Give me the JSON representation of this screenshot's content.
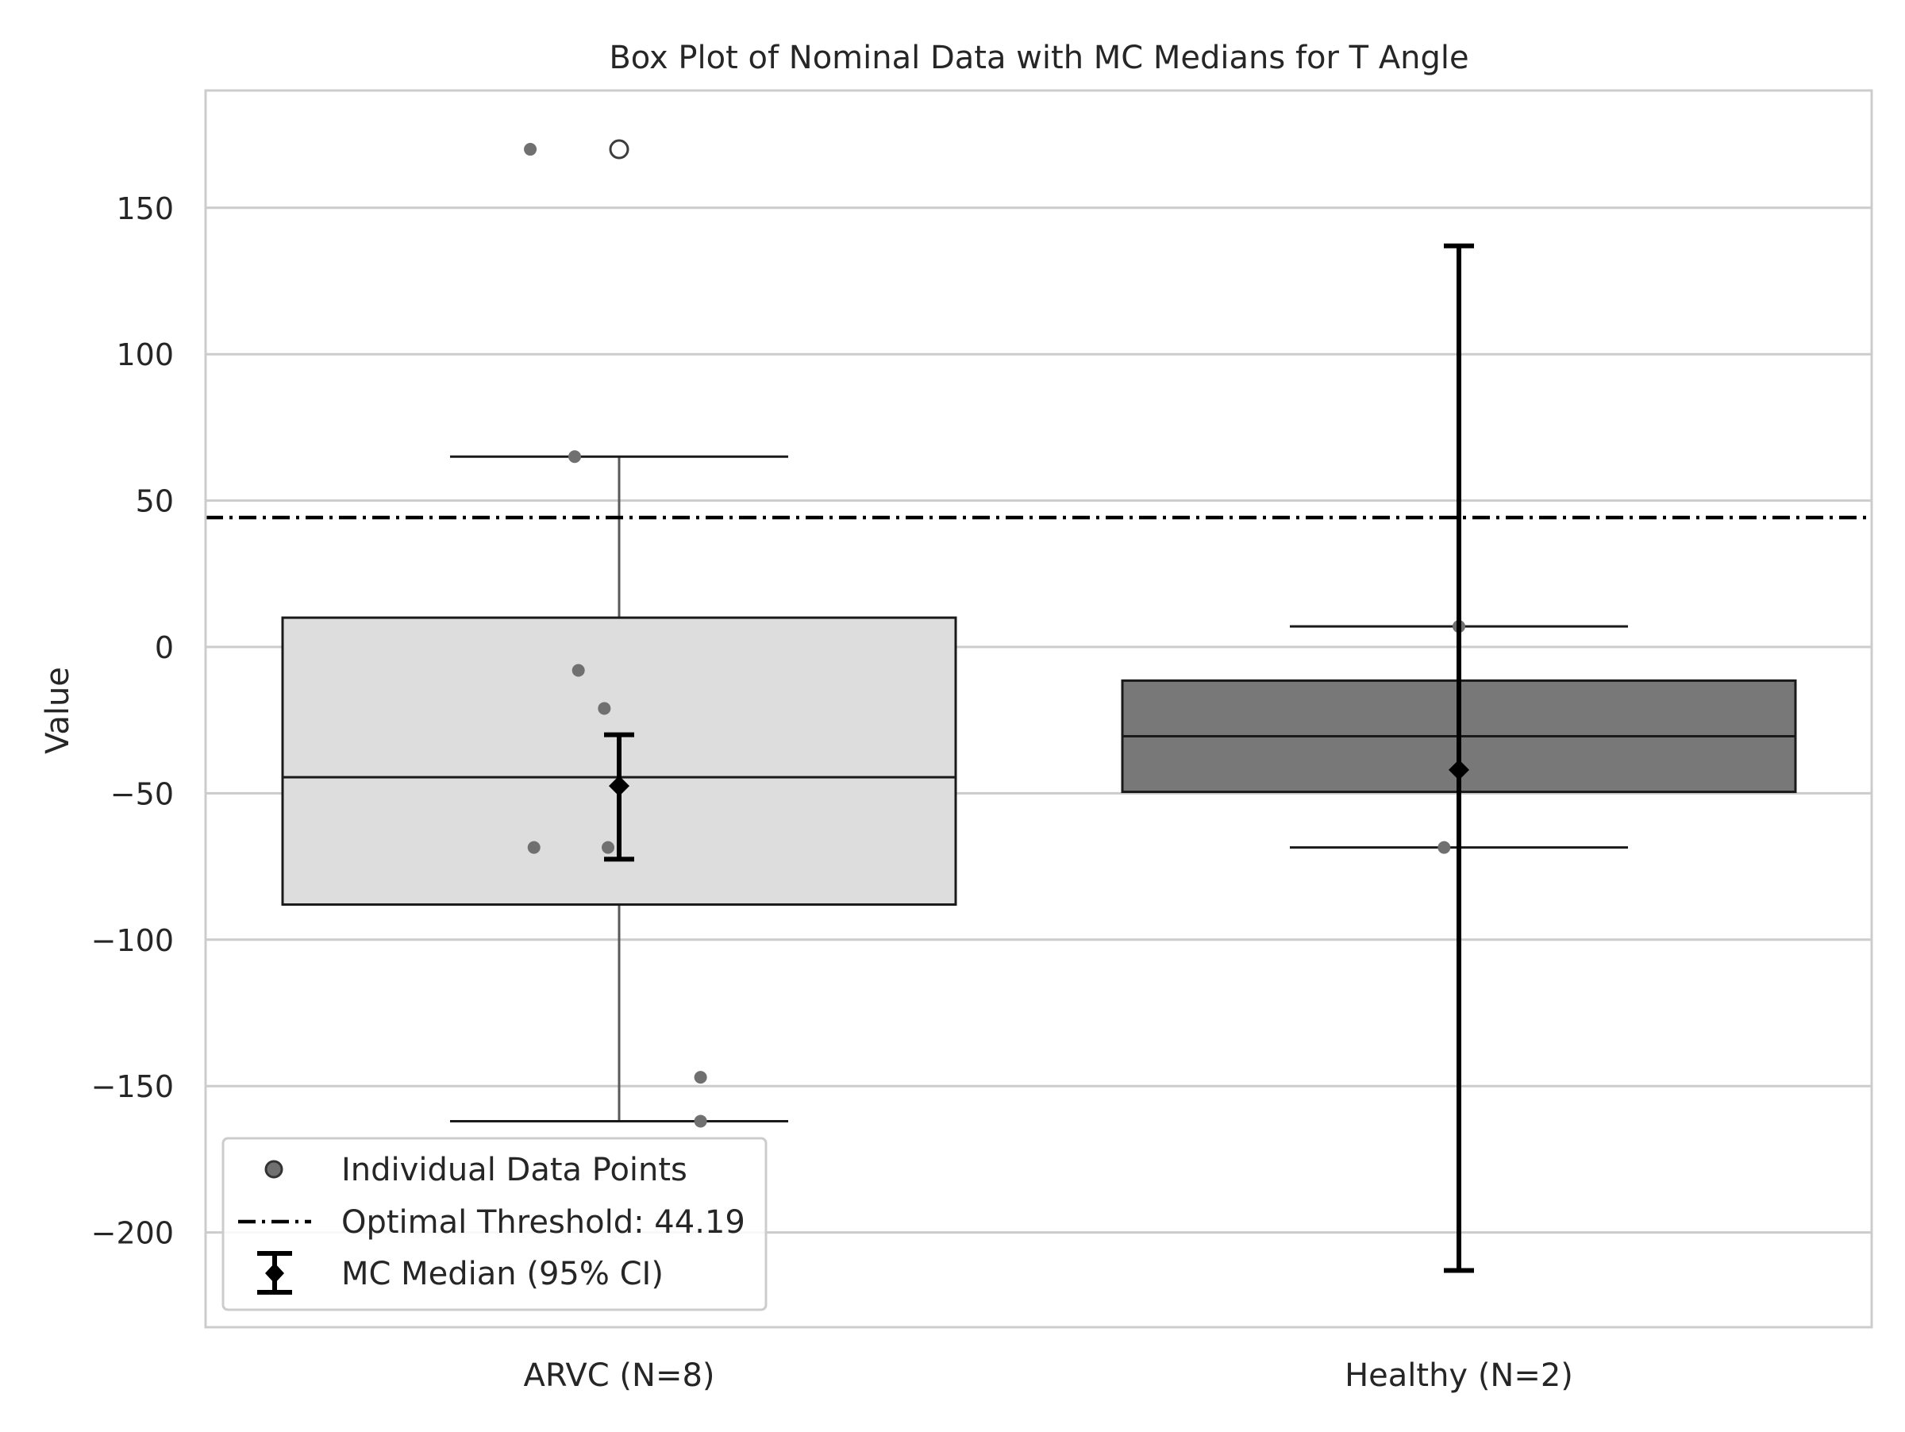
{
  "chart_data": {
    "type": "box",
    "title": "Box Plot of Nominal Data with MC Medians for T Angle",
    "xlabel": "",
    "ylabel": "Value",
    "ylim": [
      -233,
      190
    ],
    "yticks": [
      150,
      100,
      50,
      0,
      -50,
      -100,
      -150,
      -200
    ],
    "ytick_labels": [
      "150",
      "100",
      "50",
      "0",
      "−50",
      "−100",
      "−150",
      "−200"
    ],
    "grid": "horizontal",
    "legend_position": "lower-left",
    "categories": [
      "ARVC (N=8)",
      "Healthy (N=2)"
    ],
    "boxes": [
      {
        "category": "ARVC (N=8)",
        "q1": -88,
        "median": -44.5,
        "q3": 10,
        "whisker_low": -162,
        "whisker_high": 65,
        "outliers": [
          170
        ],
        "fill": "#dddddd"
      },
      {
        "category": "Healthy (N=2)",
        "q1": -49.5,
        "median": -30.5,
        "q3": -11.5,
        "whisker_low": -68.5,
        "whisker_high": 7,
        "outliers": [],
        "fill": "#787878"
      }
    ],
    "points": [
      {
        "category": "ARVC (N=8)",
        "jitter": -0.24,
        "value": 170
      },
      {
        "category": "ARVC (N=8)",
        "jitter": -0.12,
        "value": 65
      },
      {
        "category": "ARVC (N=8)",
        "jitter": -0.11,
        "value": -8
      },
      {
        "category": "ARVC (N=8)",
        "jitter": -0.04,
        "value": -21
      },
      {
        "category": "ARVC (N=8)",
        "jitter": -0.23,
        "value": -68.5
      },
      {
        "category": "ARVC (N=8)",
        "jitter": -0.03,
        "value": -68.5
      },
      {
        "category": "ARVC (N=8)",
        "jitter": 0.22,
        "value": -147
      },
      {
        "category": "ARVC (N=8)",
        "jitter": 0.22,
        "value": -162
      },
      {
        "category": "Healthy (N=2)",
        "jitter": 0.0,
        "value": 7
      },
      {
        "category": "Healthy (N=2)",
        "jitter": -0.04,
        "value": -68.5
      }
    ],
    "mc_medians": [
      {
        "category": "ARVC (N=8)",
        "median": -47.5,
        "ci_low": -72.5,
        "ci_high": -30
      },
      {
        "category": "Healthy (N=2)",
        "median": -42,
        "ci_low": -213,
        "ci_high": 137
      }
    ],
    "threshold": {
      "value": 44.19,
      "label": "Optimal Threshold: 44.19"
    },
    "legend": [
      {
        "key": "points",
        "label": "Individual Data Points"
      },
      {
        "key": "threshold",
        "label": "Optimal Threshold: 44.19"
      },
      {
        "key": "mc",
        "label": "MC Median (95% CI)"
      }
    ],
    "colors": {
      "grid": "#cccccc",
      "frame": "#cccccc",
      "points": "#707070",
      "mc": "#000000",
      "text": "#262626"
    }
  }
}
